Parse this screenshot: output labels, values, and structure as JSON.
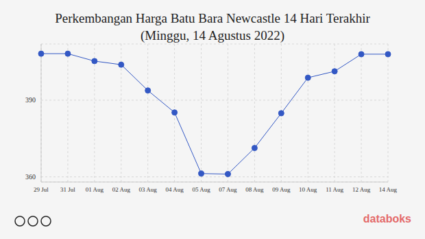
{
  "chart_data": {
    "type": "line",
    "title": "Perkembangan Harga Batu Bara Newcastle 14 Hari Terakhir",
    "subtitle": "(Minggu, 14 Agustus 2022)",
    "categories": [
      "29 Jul",
      "31 Jul",
      "01 Aug",
      "02 Aug",
      "03 Aug",
      "04 Aug",
      "05 Aug",
      "07 Aug",
      "08 Aug",
      "09 Aug",
      "10 Aug",
      "11 Aug",
      "12 Aug",
      "14 Aug"
    ],
    "values": [
      408.2,
      408.2,
      405.3,
      403.9,
      393.8,
      385.2,
      361.3,
      361.1,
      371.3,
      384.9,
      398.8,
      401.3,
      408.0,
      408.0
    ],
    "color": "#3358c4",
    "marker": "circle",
    "ylim": [
      358,
      412
    ],
    "yticks": [
      360,
      390
    ],
    "grid": true,
    "source": "databoks"
  }
}
